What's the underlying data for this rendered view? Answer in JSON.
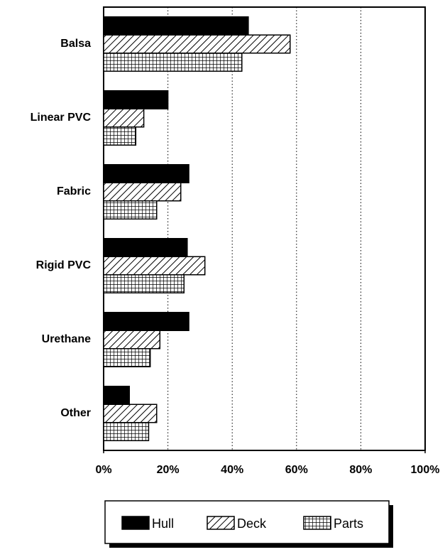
{
  "chart_data": {
    "type": "hbar",
    "categories": [
      "Balsa",
      "Linear PVC",
      "Fabric",
      "Rigid PVC",
      "Urethane",
      "Other"
    ],
    "series": [
      {
        "name": "Hull",
        "color": "#000000",
        "pattern": "solid",
        "values": [
          45,
          20,
          26.5,
          26,
          26.5,
          8
        ]
      },
      {
        "name": "Deck",
        "color": "#000000",
        "pattern": "hatch",
        "values": [
          58,
          12.5,
          24,
          31.5,
          17.5,
          16.5
        ]
      },
      {
        "name": "Parts",
        "color": "#000000",
        "pattern": "grid",
        "values": [
          43,
          10,
          16.5,
          25,
          14.5,
          14
        ]
      }
    ],
    "xlim": [
      0,
      100
    ],
    "xticks": [
      {
        "value": 0,
        "label": "0%"
      },
      {
        "value": 20,
        "label": "20%"
      },
      {
        "value": 40,
        "label": "40%"
      },
      {
        "value": 60,
        "label": "60%"
      },
      {
        "value": 80,
        "label": "80%"
      },
      {
        "value": 100,
        "label": "100%"
      }
    ],
    "grid": true,
    "legend": "bottom"
  }
}
